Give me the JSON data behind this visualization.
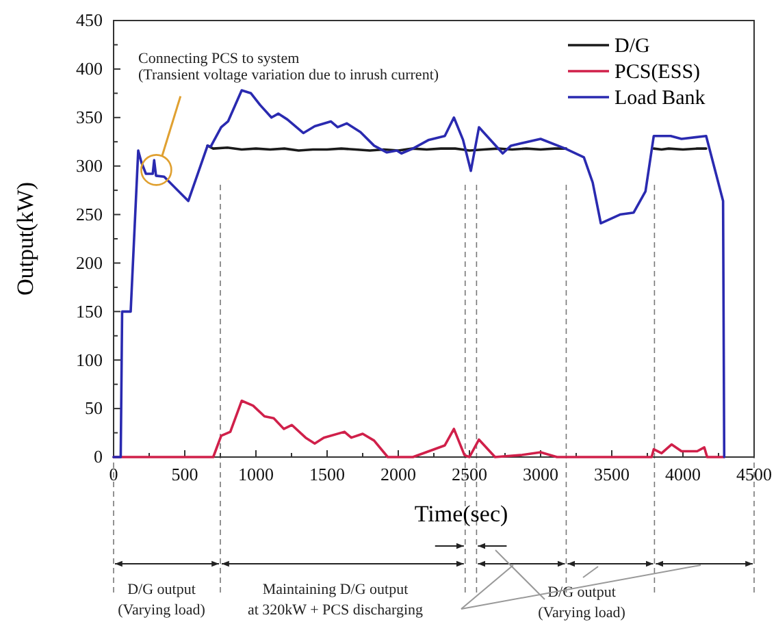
{
  "chart_data": {
    "type": "line",
    "xlabel": "Time(sec)",
    "ylabel": "Output(kW)",
    "xlim": [
      0,
      4500
    ],
    "xticks": [
      0,
      500,
      1000,
      1500,
      2000,
      2500,
      3000,
      3500,
      4000,
      4500
    ],
    "ylim": [
      0,
      450
    ],
    "yticks": [
      0,
      50,
      100,
      150,
      200,
      250,
      300,
      350,
      400,
      450
    ],
    "grid": false,
    "legend": "top right",
    "marker": "none",
    "line_style": "solid",
    "series": [
      {
        "name": "D/G",
        "color": "#1a1a1a",
        "x": [
          660,
          700,
          800,
          900,
          1000,
          1100,
          1200,
          1300,
          1400,
          1500,
          1600,
          1700,
          1800,
          1900,
          2000,
          2100,
          2200,
          2300,
          2400,
          2450,
          2500,
          2600,
          2700,
          2800,
          2900,
          3000,
          3100,
          3180,
          3500,
          3795,
          3850,
          3900,
          4000,
          4100,
          4163
        ],
        "values": [
          321,
          318,
          319,
          317,
          318,
          317,
          318,
          316,
          317,
          317,
          318,
          317,
          316,
          317,
          316,
          318,
          317,
          318,
          318,
          317,
          316,
          317,
          318,
          317,
          318,
          317,
          318,
          318,
          null,
          318,
          317,
          318,
          317,
          318,
          318
        ]
      },
      {
        "name": "PCS(ESS)",
        "color": "#d0204a",
        "x": [
          0,
          700,
          756,
          820,
          900,
          980,
          1060,
          1125,
          1196,
          1253,
          1349,
          1413,
          1477,
          1622,
          1670,
          1750,
          1830,
          1926,
          2103,
          2327,
          2391,
          2465,
          2500,
          2567,
          2680,
          2860,
          3000,
          3115,
          3780,
          3795,
          3850,
          3920,
          3990,
          4100,
          4150,
          4170,
          4290
        ],
        "values": [
          0,
          0,
          22,
          26,
          58,
          53,
          42,
          40,
          29,
          33,
          20,
          14,
          20,
          26,
          20,
          24,
          17,
          0,
          0,
          12,
          29,
          2,
          0,
          18,
          0,
          2,
          5,
          0,
          0,
          8,
          4,
          13,
          6,
          6,
          10,
          0,
          0
        ]
      },
      {
        "name": "Load Bank",
        "color": "#2a2ab0",
        "x": [
          0,
          50,
          60,
          120,
          173,
          195,
          227,
          275,
          285,
          298,
          355,
          525,
          660,
          682,
          756,
          804,
          900,
          965,
          1029,
          1109,
          1157,
          1221,
          1333,
          1413,
          1526,
          1574,
          1638,
          1734,
          1830,
          1920,
          1990,
          2022,
          2103,
          2215,
          2327,
          2391,
          2455,
          2510,
          2567,
          2734,
          2792,
          3000,
          3173,
          3304,
          3366,
          3423,
          3558,
          3654,
          3737,
          3795,
          3914,
          3990,
          4163,
          4282,
          4290
        ],
        "values": [
          0,
          0,
          150,
          150,
          316,
          304,
          292,
          292,
          306,
          290,
          289,
          264,
          321,
          320,
          340,
          346,
          378,
          375,
          363,
          350,
          354,
          348,
          334,
          341,
          346,
          340,
          344,
          335,
          321,
          314,
          316,
          313,
          318,
          327,
          331,
          350,
          327,
          295,
          340,
          313,
          321,
          328,
          318,
          309,
          283,
          241,
          250,
          252,
          274,
          331,
          331,
          328,
          331,
          264,
          0
        ]
      }
    ],
    "ref_lines": [
      {
        "axis": "x",
        "value": 0,
        "color": "#777777",
        "line_style": "dashed"
      },
      {
        "axis": "x",
        "value": 750,
        "color": "#777777",
        "line_style": "dashed"
      },
      {
        "axis": "x",
        "value": 2470,
        "color": "#777777",
        "line_style": "dashed"
      },
      {
        "axis": "x",
        "value": 2550,
        "color": "#777777",
        "line_style": "dashed"
      },
      {
        "axis": "x",
        "value": 3180,
        "color": "#777777",
        "line_style": "dashed"
      },
      {
        "axis": "x",
        "value": 3800,
        "color": "#777777",
        "line_style": "dashed"
      },
      {
        "axis": "x",
        "value": 4500,
        "color": "#777777",
        "line_style": "dashed"
      }
    ],
    "annotations": [
      "Connecting PCS to system",
      "(Transient voltage variation due to inrush current)",
      "D/G output",
      "(Varying load)",
      "Maintaining  D/G output",
      "at 320kW + PCS discharging",
      "D/G output",
      "(Varying load)"
    ]
  }
}
